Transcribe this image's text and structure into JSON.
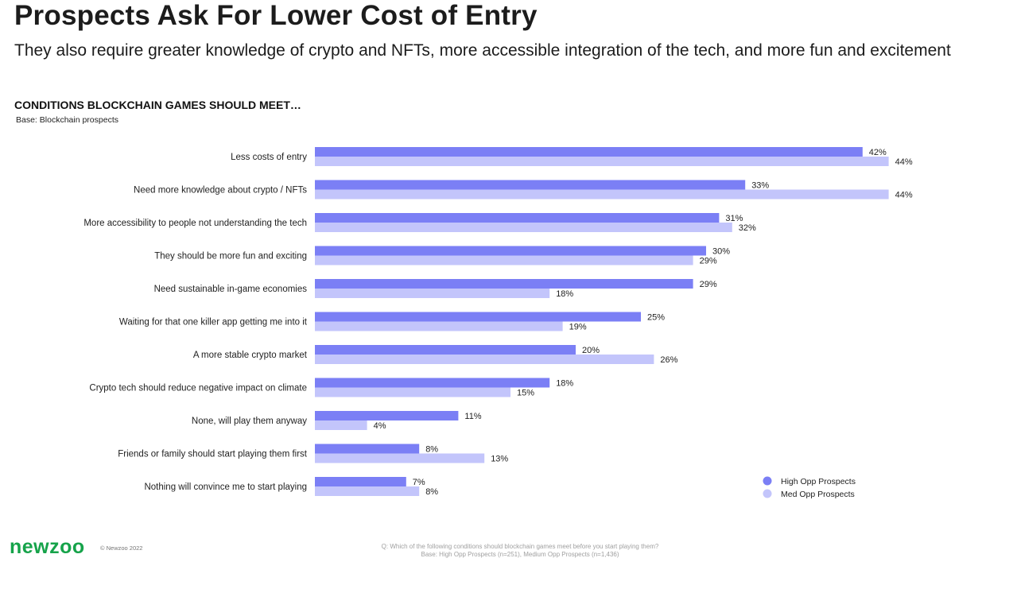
{
  "page": {
    "title": "Prospects Ask For Lower Cost of Entry",
    "subtitle": "They also require greater knowledge of crypto and NFTs, more accessible integration of the tech, and more fun and excitement",
    "chart_heading": "CONDITIONS BLOCKCHAIN GAMES SHOULD MEET…",
    "chart_base": "Base: Blockchain prospects",
    "logo": "newzoo",
    "copyright": "© Newzoo 2022",
    "footnote_question": "Q: Which of the following conditions should blockchain games meet before you start playing them?",
    "footnote_base": "Base: High Opp Prospects (n=251), Medium Opp Prospects (n=1,436)"
  },
  "colors": {
    "high": "#7b7ff5",
    "med": "#c3c5fb",
    "logo": "#16a34a"
  },
  "chart_data": {
    "type": "bar",
    "orientation": "horizontal",
    "categories": [
      "Less costs of entry",
      "Need more knowledge about crypto / NFTs",
      "More accessibility to people not understanding the tech",
      "They should be more fun and exciting",
      "Need sustainable in-game economies",
      "Waiting for that one killer app getting me into it",
      "A more stable crypto market",
      "Crypto tech should reduce negative impact on climate",
      "None, will play them anyway",
      "Friends or family should start playing them first",
      "Nothing will convince me to start playing"
    ],
    "series": [
      {
        "name": "High Opp Prospects",
        "values": [
          42,
          33,
          31,
          30,
          29,
          25,
          20,
          18,
          11,
          8,
          7
        ],
        "labels": [
          "42%",
          "33%",
          "31%",
          "30%",
          "29%",
          "25%",
          "20%",
          "18%",
          "11%",
          "8%",
          "7%"
        ]
      },
      {
        "name": "Med Opp Prospects",
        "values": [
          44,
          44,
          32,
          29,
          18,
          19,
          26,
          15,
          4,
          13,
          8
        ],
        "labels": [
          "44%",
          "44%",
          "32%",
          "29%",
          "18%",
          "19%",
          "26%",
          "15%",
          "4%",
          "13%",
          "8%"
        ]
      }
    ],
    "legend_position": "bottom-right",
    "grid": false
  }
}
